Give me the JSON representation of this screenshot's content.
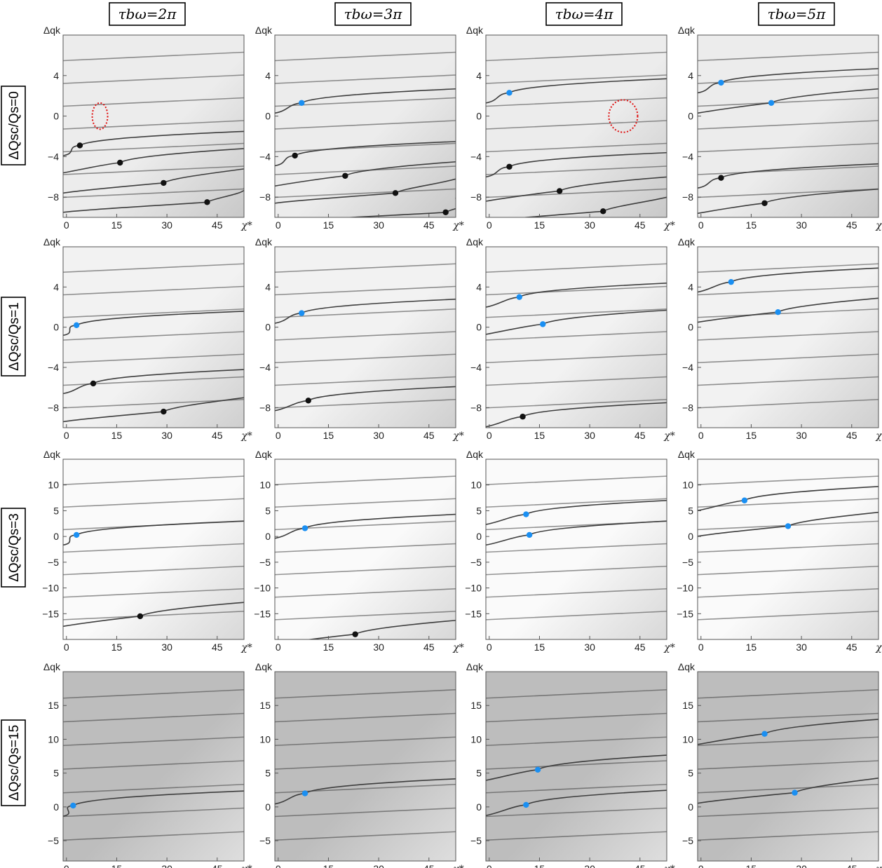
{
  "chart_data": {
    "type": "scatter",
    "column_headers": [
      "τbω=2π",
      "τbω=3π",
      "τbω=4π",
      "τbω=5π"
    ],
    "row_headers": [
      "ΔQsc/Qs=0",
      "ΔQsc/Qs=1",
      "ΔQsc/Qs=3",
      "ΔQsc/Qs=15"
    ],
    "xlabel": "χ*",
    "ylabel": "Δqk",
    "xlim": [
      -1,
      53
    ],
    "xticks": [
      0,
      15,
      30,
      45
    ],
    "rows": [
      {
        "ylim": [
          -10,
          8
        ],
        "yticks": [
          4,
          0,
          -4,
          -8
        ],
        "background": [
          "#ececec",
          "#c8c8c8"
        ],
        "panels": [
          {
            "blue_points": [],
            "black_points": [
              [
                4,
                -2.9
              ],
              [
                16,
                -4.6
              ],
              [
                29,
                -6.6
              ],
              [
                42,
                -8.5
              ]
            ],
            "dashed_circles": [
              [
                10,
                0,
                2.3,
                1.3
              ]
            ]
          },
          {
            "blue_points": [
              [
                7,
                1.3
              ]
            ],
            "black_points": [
              [
                5,
                -3.9
              ],
              [
                20,
                -5.9
              ],
              [
                35,
                -7.6
              ],
              [
                50,
                -9.5
              ]
            ],
            "dashed_circles": []
          },
          {
            "blue_points": [
              [
                6,
                2.3
              ]
            ],
            "black_points": [
              [
                6,
                -5
              ],
              [
                21,
                -7.4
              ],
              [
                34,
                -9.4
              ]
            ],
            "dashed_circles": [
              [
                40,
                0,
                4.3,
                1.6
              ]
            ]
          },
          {
            "blue_points": [
              [
                6,
                3.3
              ],
              [
                21,
                1.3
              ]
            ],
            "black_points": [
              [
                6,
                -6.1
              ],
              [
                19,
                -8.6
              ]
            ],
            "dashed_circles": []
          }
        ]
      },
      {
        "ylim": [
          -10,
          8
        ],
        "yticks": [
          4,
          0,
          -4,
          -8
        ],
        "background": [
          "#f2f2f2",
          "#cfcfcf"
        ],
        "panels": [
          {
            "blue_points": [
              [
                3,
                0.2
              ]
            ],
            "black_points": [
              [
                8,
                -5.6
              ],
              [
                29,
                -8.4
              ]
            ],
            "dashed_circles": []
          },
          {
            "blue_points": [
              [
                7,
                1.4
              ]
            ],
            "black_points": [
              [
                9,
                -7.3
              ]
            ],
            "dashed_circles": []
          },
          {
            "blue_points": [
              [
                9,
                3
              ],
              [
                16,
                0.3
              ]
            ],
            "black_points": [
              [
                10,
                -8.9
              ]
            ],
            "dashed_circles": []
          },
          {
            "blue_points": [
              [
                9,
                4.5
              ],
              [
                23,
                1.5
              ]
            ],
            "black_points": [],
            "dashed_circles": []
          }
        ]
      },
      {
        "ylim": [
          -20,
          15
        ],
        "yticks": [
          10,
          5,
          0,
          -5,
          -10,
          -15
        ],
        "background": [
          "#fafafa",
          "#d8d8d8"
        ],
        "panels": [
          {
            "blue_points": [
              [
                3,
                0.3
              ]
            ],
            "black_points": [
              [
                22,
                -15.5
              ]
            ],
            "dashed_circles": []
          },
          {
            "blue_points": [
              [
                8,
                1.6
              ]
            ],
            "black_points": [
              [
                23,
                -19
              ]
            ],
            "dashed_circles": []
          },
          {
            "blue_points": [
              [
                11,
                4.3
              ],
              [
                12,
                0.3
              ]
            ],
            "black_points": [],
            "dashed_circles": []
          },
          {
            "blue_points": [
              [
                13,
                7
              ],
              [
                26,
                2
              ]
            ],
            "black_points": [],
            "dashed_circles": []
          }
        ]
      },
      {
        "ylim": [
          -8,
          20
        ],
        "yticks": [
          15,
          10,
          5,
          0,
          -5
        ],
        "background": [
          "#bdbdbd",
          "#dedede"
        ],
        "panels": [
          {
            "blue_points": [
              [
                2,
                0.2
              ]
            ],
            "black_points": [],
            "dashed_circles": []
          },
          {
            "blue_points": [
              [
                8,
                2
              ]
            ],
            "black_points": [],
            "dashed_circles": []
          },
          {
            "blue_points": [
              [
                14.5,
                5.5
              ],
              [
                11,
                0.3
              ]
            ],
            "black_points": [],
            "dashed_circles": []
          },
          {
            "blue_points": [
              [
                19,
                10.8
              ],
              [
                28,
                2.1
              ]
            ],
            "black_points": [],
            "dashed_circles": []
          }
        ]
      }
    ]
  },
  "colors": {
    "blue_point": "#1a8ff2",
    "black_point": "#111111",
    "dashed_circle": "#e01010",
    "curve": "#3d3d3d"
  }
}
